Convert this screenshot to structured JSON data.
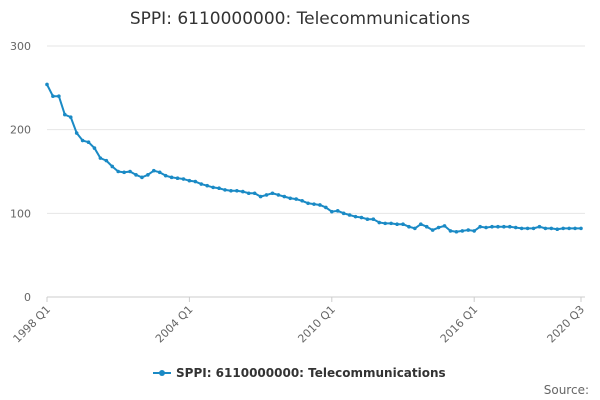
{
  "chart_data": {
    "type": "line",
    "title": "SPPI: 6110000000: Telecommunications",
    "xlabel": "",
    "ylabel": "",
    "ylim": [
      0,
      300
    ],
    "y_ticks": [
      "0",
      "100",
      "200",
      "300"
    ],
    "x_tick_labels": [
      "1998 Q1",
      "2004 Q1",
      "2010 Q1",
      "2016 Q1",
      "2020 Q3"
    ],
    "x_tick_indices": [
      0,
      24,
      48,
      72,
      90
    ],
    "legend_position": "bottom-center",
    "grid": true,
    "series": [
      {
        "name": "SPPI: 6110000000: Telecommunications",
        "color": "#1a8ac5",
        "values": [
          254,
          240,
          240,
          218,
          215,
          196,
          187,
          185,
          178,
          166,
          163,
          156,
          150,
          149,
          150,
          146,
          143,
          146,
          151,
          149,
          145,
          143,
          142,
          141,
          139,
          138,
          135,
          133,
          131,
          130,
          128,
          127,
          127,
          126,
          124,
          124,
          120,
          122,
          124,
          122,
          120,
          118,
          117,
          115,
          112,
          111,
          110,
          107,
          102,
          103,
          100,
          98,
          96,
          95,
          93,
          93,
          89,
          88,
          88,
          87,
          87,
          84,
          82,
          87,
          84,
          80,
          83,
          85,
          79,
          78,
          79,
          80,
          79,
          84,
          83,
          84,
          84,
          84,
          84,
          83,
          82,
          82,
          82,
          84,
          82,
          82,
          81,
          82,
          82,
          82,
          82
        ]
      }
    ]
  },
  "footer": {
    "source_label": "Source:"
  }
}
